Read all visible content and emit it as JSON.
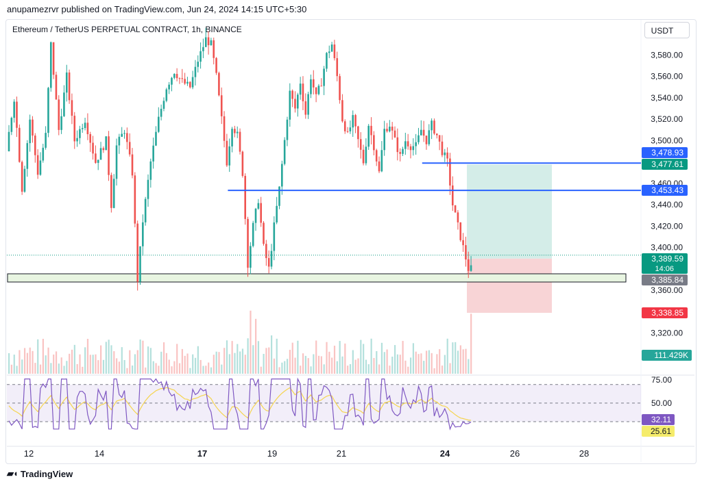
{
  "publisher": "anupamezrvr published on TradingView.com, Jun 24, 2024 14:15 UTC+5:30",
  "footer": {
    "logo_icon": "tradingview-logo-icon",
    "brand": "TradingView"
  },
  "colors": {
    "up": "#26a69a",
    "down": "#ef5350",
    "target_fill": "#d4ede8",
    "stop_fill": "#f8d4d6",
    "blue_line": "#2962ff",
    "rsi_line": "#7e57c2",
    "rsi_ma": "#f5d44f",
    "zone_fill": "#e8f5e1"
  },
  "chart_data": {
    "type": "candlestick",
    "title": "Ethereum / TetherUS PERPETUAL CONTRACT, 1h, BINANCE",
    "currency": "USDT",
    "ylim": [
      3300,
      3600
    ],
    "y_ticks": [
      "3,580.00",
      "3,560.00",
      "3,540.00",
      "3,520.00",
      "3,500.00",
      "3,460.00",
      "3,440.00",
      "3,420.00",
      "3,400.00",
      "3,360.00",
      "3,320.00"
    ],
    "y_tick_values": [
      3580,
      3560,
      3540,
      3520,
      3500,
      3460,
      3440,
      3420,
      3400,
      3360,
      3320
    ],
    "x_ticks": [
      {
        "label": "12",
        "bold": false
      },
      {
        "label": "14",
        "bold": false
      },
      {
        "label": "17",
        "bold": true
      },
      {
        "label": "19",
        "bold": false
      },
      {
        "label": "21",
        "bold": false
      },
      {
        "label": "24",
        "bold": true
      },
      {
        "label": "26",
        "bold": false
      },
      {
        "label": "28",
        "bold": false
      }
    ],
    "price_path": [
      [
        0,
        3490
      ],
      [
        3,
        3540
      ],
      [
        6,
        3455
      ],
      [
        9,
        3520
      ],
      [
        12,
        3470
      ],
      [
        15,
        3505
      ],
      [
        17,
        3590
      ],
      [
        20,
        3510
      ],
      [
        23,
        3560
      ],
      [
        26,
        3500
      ],
      [
        30,
        3520
      ],
      [
        34,
        3480
      ],
      [
        38,
        3500
      ],
      [
        40,
        3440
      ],
      [
        42,
        3495
      ],
      [
        45,
        3510
      ],
      [
        48,
        3470
      ],
      [
        50,
        3370
      ],
      [
        52,
        3425
      ],
      [
        55,
        3480
      ],
      [
        58,
        3520
      ],
      [
        61,
        3550
      ],
      [
        64,
        3565
      ],
      [
        67,
        3555
      ],
      [
        70,
        3550
      ],
      [
        73,
        3575
      ],
      [
        76,
        3595
      ],
      [
        78,
        3590
      ],
      [
        80,
        3560
      ],
      [
        82,
        3520
      ],
      [
        84,
        3480
      ],
      [
        86,
        3515
      ],
      [
        88,
        3505
      ],
      [
        90,
        3470
      ],
      [
        92,
        3385
      ],
      [
        94,
        3420
      ],
      [
        96,
        3445
      ],
      [
        98,
        3400
      ],
      [
        100,
        3380
      ],
      [
        102,
        3420
      ],
      [
        104,
        3455
      ],
      [
        106,
        3500
      ],
      [
        108,
        3545
      ],
      [
        110,
        3530
      ],
      [
        112,
        3555
      ],
      [
        114,
        3525
      ],
      [
        116,
        3560
      ],
      [
        118,
        3540
      ],
      [
        120,
        3555
      ],
      [
        122,
        3580
      ],
      [
        124,
        3590
      ],
      [
        126,
        3560
      ],
      [
        128,
        3520
      ],
      [
        130,
        3505
      ],
      [
        132,
        3520
      ],
      [
        134,
        3500
      ],
      [
        136,
        3480
      ],
      [
        138,
        3515
      ],
      [
        140,
        3495
      ],
      [
        142,
        3470
      ],
      [
        144,
        3510
      ],
      [
        146,
        3515
      ],
      [
        148,
        3500
      ],
      [
        150,
        3485
      ],
      [
        152,
        3500
      ],
      [
        154,
        3495
      ],
      [
        156,
        3495
      ],
      [
        158,
        3510
      ],
      [
        160,
        3500
      ],
      [
        162,
        3515
      ],
      [
        164,
        3505
      ],
      [
        166,
        3490
      ],
      [
        168,
        3480
      ],
      [
        169,
        3460
      ],
      [
        170,
        3440
      ],
      [
        172,
        3420
      ],
      [
        174,
        3400
      ],
      [
        176,
        3380
      ]
    ],
    "candle_count": 177,
    "current_time_label": "14:06",
    "price_labels": [
      {
        "label": "3,478.93",
        "price": 3478.93,
        "bg": "#2962ff",
        "fg": "#ffffff"
      },
      {
        "label": "3,477.61",
        "price": 3477.61,
        "bg": "#089981",
        "fg": "#ffffff"
      },
      {
        "label": "3,453.43",
        "price": 3453.43,
        "bg": "#2962ff",
        "fg": "#ffffff"
      },
      {
        "label": "3,389.59",
        "price": 3389.59,
        "bg": "#089981",
        "fg": "#ffffff"
      },
      {
        "label": "3,385.84",
        "price": 3385.84,
        "bg": "#787b86",
        "fg": "#ffffff"
      },
      {
        "label": "3,338.85",
        "price": 3338.85,
        "bg": "#f23645",
        "fg": "#ffffff"
      }
    ],
    "horizontal_lines": [
      {
        "price": 3478.93,
        "color": "#2962ff",
        "from_index": 160
      },
      {
        "price": 3453.43,
        "color": "#2962ff",
        "from_index": 86
      }
    ],
    "support_zone": {
      "top": 3370,
      "bottom": 3363
    },
    "position": {
      "entry": 3389.59,
      "target": 3477.61,
      "stop": 3338.85,
      "from_index": 170,
      "to_index": 200
    },
    "volume_label": "111.429K",
    "rsi": {
      "ticks": [
        "75.00",
        "50.00"
      ],
      "levels": [
        70,
        50,
        30
      ],
      "value": 32.11,
      "value_label": "32.11",
      "ma_value": 25.61,
      "ma_label": "25.61"
    }
  }
}
